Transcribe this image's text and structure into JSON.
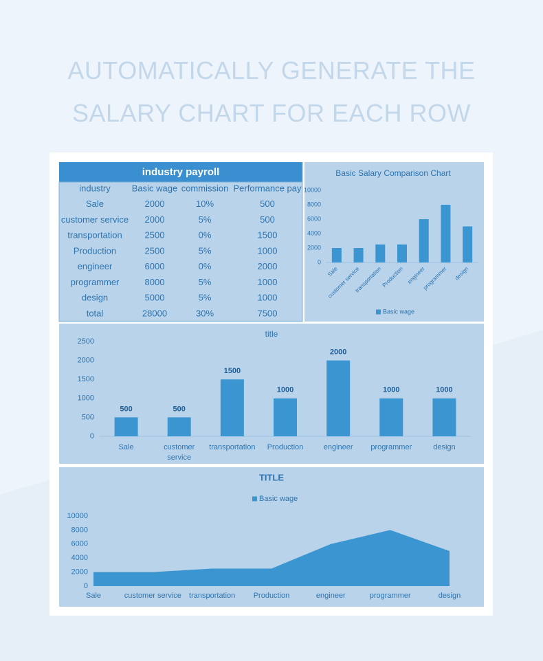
{
  "header": {
    "title": "AUTOMATICALLY GENERATE THE SALARY CHART FOR EACH ROW"
  },
  "table": {
    "title": "industry payroll",
    "columns": [
      "industry",
      "Basic wage",
      "commission",
      "Performance pay"
    ],
    "rows": [
      [
        "Sale",
        2000,
        "10%",
        500
      ],
      [
        "customer service",
        2000,
        "5%",
        500
      ],
      [
        "transportation",
        2500,
        "0%",
        1500
      ],
      [
        "Production",
        2500,
        "5%",
        1000
      ],
      [
        "engineer",
        6000,
        "0%",
        2000
      ],
      [
        "programmer",
        8000,
        "5%",
        1000
      ],
      [
        "design",
        5000,
        "5%",
        1000
      ],
      [
        "total",
        28000,
        "30%",
        7500
      ]
    ]
  },
  "chart_data": [
    {
      "type": "bar",
      "title": "Basic Salary Comparison Chart",
      "categories": [
        "Sale",
        "customer service",
        "transportation",
        "Production",
        "engineer",
        "programmer",
        "design"
      ],
      "series": [
        {
          "name": "Basic wage",
          "color": "#3a95d0",
          "values": [
            2000,
            2000,
            2500,
            2500,
            6000,
            8000,
            5000
          ]
        }
      ],
      "ylim": [
        0,
        10000
      ],
      "yticks": [
        0,
        2000,
        4000,
        6000,
        8000,
        10000
      ],
      "legend": "bottom",
      "data_labels": false
    },
    {
      "type": "bar",
      "title": "title",
      "categories": [
        "Sale",
        "customer service",
        "transportation",
        "Production",
        "engineer",
        "programmer",
        "design"
      ],
      "values": [
        500,
        500,
        1500,
        1000,
        2000,
        1000,
        1000
      ],
      "color": "#3a95d0",
      "ylim": [
        0,
        2500
      ],
      "yticks": [
        0,
        500,
        1000,
        1500,
        2000,
        2500
      ],
      "data_labels": true
    },
    {
      "type": "area",
      "title": "TITLE",
      "categories": [
        "Sale",
        "customer service",
        "transportation",
        "Production",
        "engineer",
        "programmer",
        "design"
      ],
      "series": [
        {
          "name": "Basic wage",
          "color": "#3a95d0",
          "values": [
            2000,
            2000,
            2500,
            2500,
            6000,
            8000,
            5000
          ]
        }
      ],
      "ylim": [
        0,
        10000
      ],
      "yticks": [
        0,
        2000,
        4000,
        6000,
        8000,
        10000
      ],
      "legend": "top",
      "data_labels": false
    }
  ]
}
